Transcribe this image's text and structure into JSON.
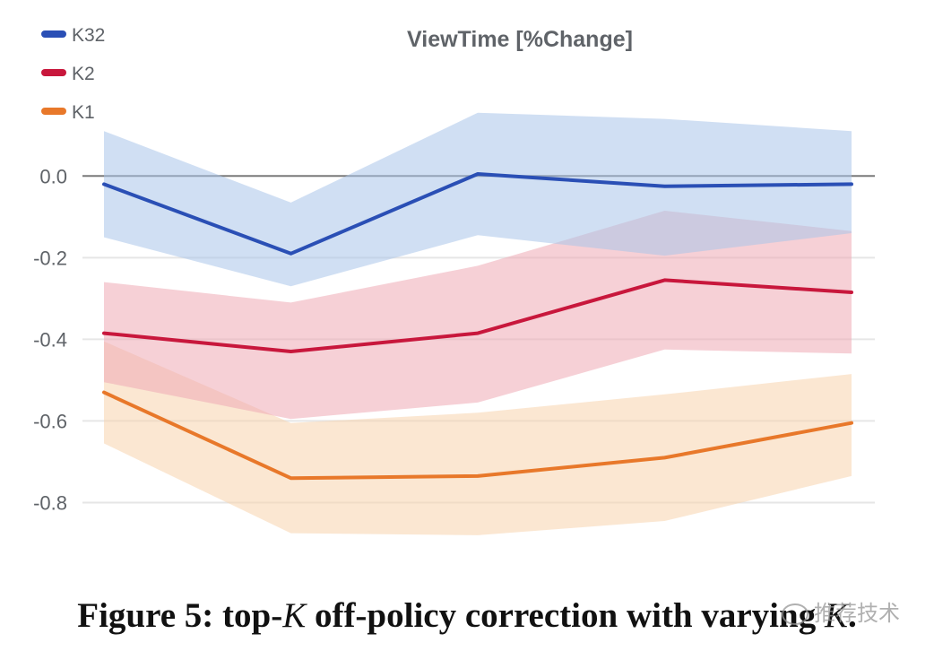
{
  "chart_data": {
    "type": "line",
    "title": "ViewTime [%Change]",
    "xlabel": "",
    "ylabel": "",
    "x": [
      1,
      2,
      3,
      4,
      5
    ],
    "ylim": [
      -0.9,
      0.15
    ],
    "yticks": [
      0.0,
      -0.2,
      -0.4,
      -0.6,
      -0.8
    ],
    "ytick_labels": [
      "0.0",
      "-0.2",
      "-0.4",
      "-0.6",
      "-0.8"
    ],
    "grid": true,
    "legend_position": "top-left",
    "series": [
      {
        "name": "K32",
        "color": "#2a4fb5",
        "band_color": "#a9c4ea",
        "values": [
          -0.02,
          -0.19,
          0.005,
          -0.025,
          -0.02
        ],
        "upper": [
          0.11,
          -0.065,
          0.155,
          0.14,
          0.11
        ],
        "lower": [
          -0.15,
          -0.27,
          -0.145,
          -0.195,
          -0.14
        ]
      },
      {
        "name": "K2",
        "color": "#c8173c",
        "band_color": "#efaab4",
        "values": [
          -0.385,
          -0.43,
          -0.385,
          -0.255,
          -0.285
        ],
        "upper": [
          -0.26,
          -0.31,
          -0.22,
          -0.085,
          -0.135
        ],
        "lower": [
          -0.505,
          -0.595,
          -0.555,
          -0.425,
          -0.435
        ]
      },
      {
        "name": "K1",
        "color": "#e8782a",
        "band_color": "#f8d3ad",
        "values": [
          -0.53,
          -0.74,
          -0.735,
          -0.69,
          -0.605
        ],
        "upper": [
          -0.405,
          -0.605,
          -0.58,
          -0.535,
          -0.485
        ],
        "lower": [
          -0.655,
          -0.875,
          -0.88,
          -0.845,
          -0.735
        ]
      }
    ]
  },
  "caption": {
    "prefix": "Figure 5: top-",
    "var1": "K",
    "middle": " off-policy correction with varying ",
    "var2": "K",
    "suffix": "."
  },
  "watermark": {
    "text": "推荐技术"
  }
}
